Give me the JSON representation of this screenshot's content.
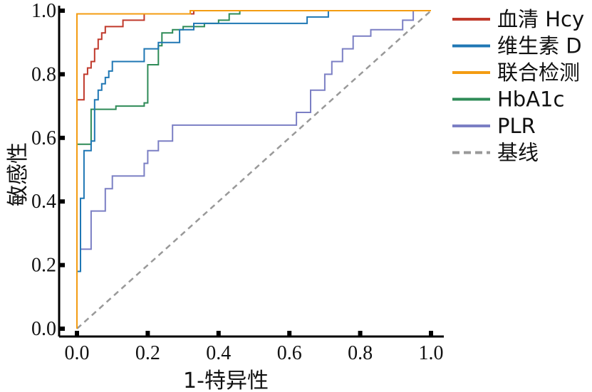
{
  "chart_data": {
    "type": "line",
    "title": "",
    "xlabel": "1-特异性",
    "ylabel": "敏感性",
    "xlim": [
      0,
      1
    ],
    "ylim": [
      0,
      1
    ],
    "xticks": [
      "0.0",
      "0.2",
      "0.4",
      "0.6",
      "0.8",
      "1.0"
    ],
    "yticks": [
      "0.0",
      "0.2",
      "0.4",
      "0.6",
      "0.8",
      "1.0"
    ],
    "grid": false,
    "legend_position": "right",
    "series": [
      {
        "name": "血清 Hcy",
        "color": "#c0392b",
        "points": [
          [
            0,
            0
          ],
          [
            0,
            0.59
          ],
          [
            0,
            0.72
          ],
          [
            0.02,
            0.72
          ],
          [
            0.02,
            0.8
          ],
          [
            0.03,
            0.8
          ],
          [
            0.03,
            0.82
          ],
          [
            0.04,
            0.82
          ],
          [
            0.04,
            0.84
          ],
          [
            0.05,
            0.84
          ],
          [
            0.05,
            0.88
          ],
          [
            0.06,
            0.88
          ],
          [
            0.06,
            0.91
          ],
          [
            0.07,
            0.91
          ],
          [
            0.07,
            0.93
          ],
          [
            0.08,
            0.93
          ],
          [
            0.08,
            0.95
          ],
          [
            0.13,
            0.95
          ],
          [
            0.13,
            0.97
          ],
          [
            0.19,
            0.97
          ],
          [
            0.19,
            0.99
          ],
          [
            0.33,
            0.99
          ],
          [
            0.33,
            1.0
          ],
          [
            1.0,
            1.0
          ]
        ]
      },
      {
        "name": "维生素 D",
        "color": "#1f77b4",
        "points": [
          [
            0,
            0
          ],
          [
            0,
            0.18
          ],
          [
            0.01,
            0.18
          ],
          [
            0.01,
            0.41
          ],
          [
            0.02,
            0.41
          ],
          [
            0.02,
            0.56
          ],
          [
            0.04,
            0.56
          ],
          [
            0.04,
            0.59
          ],
          [
            0.05,
            0.59
          ],
          [
            0.05,
            0.72
          ],
          [
            0.06,
            0.72
          ],
          [
            0.06,
            0.75
          ],
          [
            0.07,
            0.75
          ],
          [
            0.07,
            0.77
          ],
          [
            0.08,
            0.77
          ],
          [
            0.08,
            0.79
          ],
          [
            0.09,
            0.79
          ],
          [
            0.09,
            0.81
          ],
          [
            0.1,
            0.81
          ],
          [
            0.1,
            0.84
          ],
          [
            0.19,
            0.84
          ],
          [
            0.19,
            0.88
          ],
          [
            0.23,
            0.88
          ],
          [
            0.23,
            0.9
          ],
          [
            0.29,
            0.9
          ],
          [
            0.29,
            0.94
          ],
          [
            0.33,
            0.94
          ],
          [
            0.33,
            0.96
          ],
          [
            0.65,
            0.96
          ],
          [
            0.65,
            0.98
          ],
          [
            0.71,
            0.98
          ],
          [
            0.71,
            1.0
          ],
          [
            1.0,
            1.0
          ]
        ]
      },
      {
        "name": "联合检测",
        "color": "#f39c12",
        "points": [
          [
            0,
            0
          ],
          [
            0,
            0.59
          ],
          [
            0,
            0.72
          ],
          [
            0,
            0.99
          ],
          [
            0.32,
            0.99
          ],
          [
            0.32,
            1.0
          ],
          [
            1.0,
            1.0
          ]
        ]
      },
      {
        "name": "HbA1c",
        "color": "#2e8b57",
        "points": [
          [
            0,
            0
          ],
          [
            0,
            0.18
          ],
          [
            0,
            0.58
          ],
          [
            0.04,
            0.58
          ],
          [
            0.04,
            0.69
          ],
          [
            0.11,
            0.69
          ],
          [
            0.11,
            0.7
          ],
          [
            0.19,
            0.7
          ],
          [
            0.19,
            0.71
          ],
          [
            0.2,
            0.71
          ],
          [
            0.2,
            0.83
          ],
          [
            0.23,
            0.83
          ],
          [
            0.23,
            0.89
          ],
          [
            0.24,
            0.89
          ],
          [
            0.24,
            0.93
          ],
          [
            0.27,
            0.93
          ],
          [
            0.27,
            0.94
          ],
          [
            0.3,
            0.94
          ],
          [
            0.3,
            0.95
          ],
          [
            0.36,
            0.95
          ],
          [
            0.36,
            0.96
          ],
          [
            0.4,
            0.96
          ],
          [
            0.4,
            0.97
          ],
          [
            0.43,
            0.97
          ],
          [
            0.43,
            0.99
          ],
          [
            0.46,
            0.99
          ],
          [
            0.46,
            1.0
          ],
          [
            0.77,
            1.0
          ],
          [
            0.77,
            1.0
          ],
          [
            1.0,
            1.0
          ]
        ]
      },
      {
        "name": "PLR",
        "color": "#7b7fc4",
        "points": [
          [
            0,
            0
          ],
          [
            0,
            0.18
          ],
          [
            0.01,
            0.18
          ],
          [
            0.01,
            0.25
          ],
          [
            0.04,
            0.25
          ],
          [
            0.04,
            0.37
          ],
          [
            0.08,
            0.37
          ],
          [
            0.08,
            0.44
          ],
          [
            0.1,
            0.44
          ],
          [
            0.1,
            0.48
          ],
          [
            0.19,
            0.48
          ],
          [
            0.19,
            0.52
          ],
          [
            0.2,
            0.52
          ],
          [
            0.2,
            0.56
          ],
          [
            0.23,
            0.56
          ],
          [
            0.23,
            0.59
          ],
          [
            0.27,
            0.59
          ],
          [
            0.27,
            0.64
          ],
          [
            0.32,
            0.64
          ],
          [
            0.32,
            0.64
          ],
          [
            0.62,
            0.64
          ],
          [
            0.62,
            0.68
          ],
          [
            0.66,
            0.68
          ],
          [
            0.66,
            0.75
          ],
          [
            0.7,
            0.75
          ],
          [
            0.7,
            0.8
          ],
          [
            0.72,
            0.8
          ],
          [
            0.72,
            0.84
          ],
          [
            0.75,
            0.84
          ],
          [
            0.75,
            0.88
          ],
          [
            0.78,
            0.88
          ],
          [
            0.78,
            0.92
          ],
          [
            0.83,
            0.92
          ],
          [
            0.83,
            0.94
          ],
          [
            0.92,
            0.94
          ],
          [
            0.92,
            0.97
          ],
          [
            0.95,
            0.97
          ],
          [
            0.95,
            1.0
          ],
          [
            1.0,
            1.0
          ]
        ]
      },
      {
        "name": "基线",
        "color": "#999999",
        "dashed": true,
        "points": [
          [
            0,
            0
          ],
          [
            1,
            1
          ]
        ]
      }
    ]
  }
}
